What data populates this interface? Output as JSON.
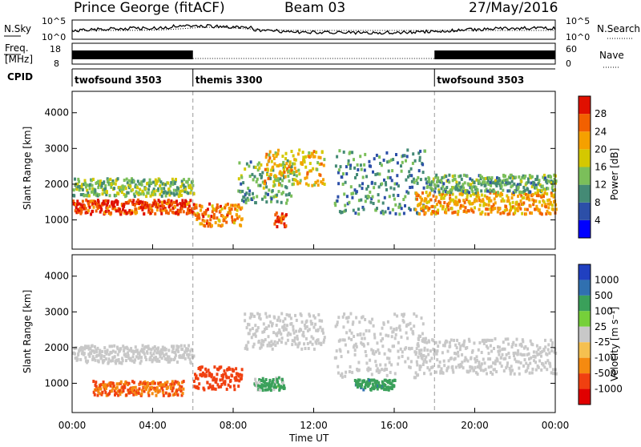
{
  "header": {
    "station": "Prince George (fitACF)",
    "beam": "Beam 03",
    "date": "27/May/2016"
  },
  "noise_panel": {
    "left_label": "N.Sky",
    "right_label": "N.Search",
    "left_ticks": [
      "10^5",
      "10^0"
    ],
    "right_ticks": [
      "10^5",
      "10^0"
    ]
  },
  "freq_panel": {
    "left_label_1": "Freq.",
    "left_label_2": "[MHz]",
    "right_label": "Nave",
    "left_ticks": [
      "18",
      "8"
    ],
    "right_ticks": [
      "60",
      "0"
    ]
  },
  "cpid_panel": {
    "label": "CPID",
    "segments": [
      {
        "name": "twofsound 3503",
        "start_hour": 0,
        "end_hour": 6
      },
      {
        "name": "themis 3300",
        "start_hour": 6,
        "end_hour": 18
      },
      {
        "name": "twofsound 3503",
        "start_hour": 18,
        "end_hour": 24
      }
    ]
  },
  "power_panel": {
    "ylabel": "Slant Range [km]",
    "yticks": [
      "4000",
      "3000",
      "2000",
      "1000"
    ],
    "colorbar_label": "Power [dB]",
    "colorbar_ticks": [
      "28",
      "24",
      "20",
      "16",
      "12",
      "8",
      "4"
    ],
    "colors": [
      "#0000ff",
      "#2c4fa8",
      "#448a75",
      "#7bbf5a",
      "#d4c800",
      "#f5a000",
      "#f26000",
      "#e01000"
    ]
  },
  "velocity_panel": {
    "ylabel": "Slant Range [km]",
    "yticks": [
      "4000",
      "3000",
      "2000",
      "1000"
    ],
    "colorbar_label": "Velocity [m s⁻¹]",
    "colorbar_ticks": [
      "1000",
      "500",
      "100",
      "25",
      "-25",
      "-100",
      "-500",
      "-1000"
    ],
    "colors": [
      "#2040c0",
      "#3070b0",
      "#3aa05a",
      "#76d03a",
      "#c8c8c8",
      "#f5c050",
      "#f58a10",
      "#f04010",
      "#e00000"
    ]
  },
  "xaxis": {
    "label": "Time UT",
    "ticks": [
      "00:00",
      "04:00",
      "08:00",
      "12:00",
      "16:00",
      "20:00",
      "00:00"
    ]
  },
  "chart_data": {
    "type": "heatmap",
    "title": "Prince George (fitACF)   Beam 03   27/May/2016",
    "xlabel": "Time UT",
    "ylabel": "Slant Range [km]",
    "xlim": [
      0,
      24
    ],
    "ylim": [
      180,
      4600
    ],
    "power_range_db": [
      0,
      32
    ],
    "velocity_range_ms": [
      -1000,
      1000
    ],
    "power_bands": [
      {
        "t0": 0.0,
        "t1": 6.0,
        "r0": 1200,
        "r1": 1600,
        "level": 28
      },
      {
        "t0": 0.0,
        "t1": 6.0,
        "r0": 1700,
        "r1": 2200,
        "level": 14
      },
      {
        "t0": 6.0,
        "t1": 8.4,
        "r0": 850,
        "r1": 1500,
        "level": 24
      },
      {
        "t0": 8.2,
        "t1": 11.0,
        "r0": 1500,
        "r1": 2700,
        "level": 12
      },
      {
        "t0": 9.5,
        "t1": 12.5,
        "r0": 2000,
        "r1": 3000,
        "level": 20
      },
      {
        "t0": 10.0,
        "t1": 10.6,
        "r0": 850,
        "r1": 1250,
        "level": 28
      },
      {
        "t0": 13.0,
        "t1": 17.5,
        "r0": 1200,
        "r1": 3000,
        "level": 10
      },
      {
        "t0": 17.0,
        "t1": 24.0,
        "r0": 1200,
        "r1": 1800,
        "level": 22
      },
      {
        "t0": 17.5,
        "t1": 24.0,
        "r0": 1800,
        "r1": 2300,
        "level": 12
      }
    ],
    "velocity_bands": [
      {
        "t0": 0.0,
        "t1": 6.0,
        "r0": 1600,
        "r1": 2100,
        "value": 0
      },
      {
        "t0": 1.0,
        "t1": 5.5,
        "r0": 700,
        "r1": 1100,
        "value": -300
      },
      {
        "t0": 6.0,
        "t1": 8.4,
        "r0": 850,
        "r1": 1500,
        "value": -500
      },
      {
        "t0": 9.0,
        "t1": 10.5,
        "r0": 850,
        "r1": 1200,
        "value": 100
      },
      {
        "t0": 8.5,
        "t1": 12.5,
        "r0": 2000,
        "r1": 3000,
        "value": 0
      },
      {
        "t0": 13.0,
        "t1": 17.5,
        "r0": 1200,
        "r1": 3000,
        "value": 0
      },
      {
        "t0": 14.0,
        "t1": 16.0,
        "r0": 850,
        "r1": 1150,
        "value": 200
      },
      {
        "t0": 17.0,
        "t1": 24.0,
        "r0": 1300,
        "r1": 2300,
        "value": 0
      }
    ]
  }
}
